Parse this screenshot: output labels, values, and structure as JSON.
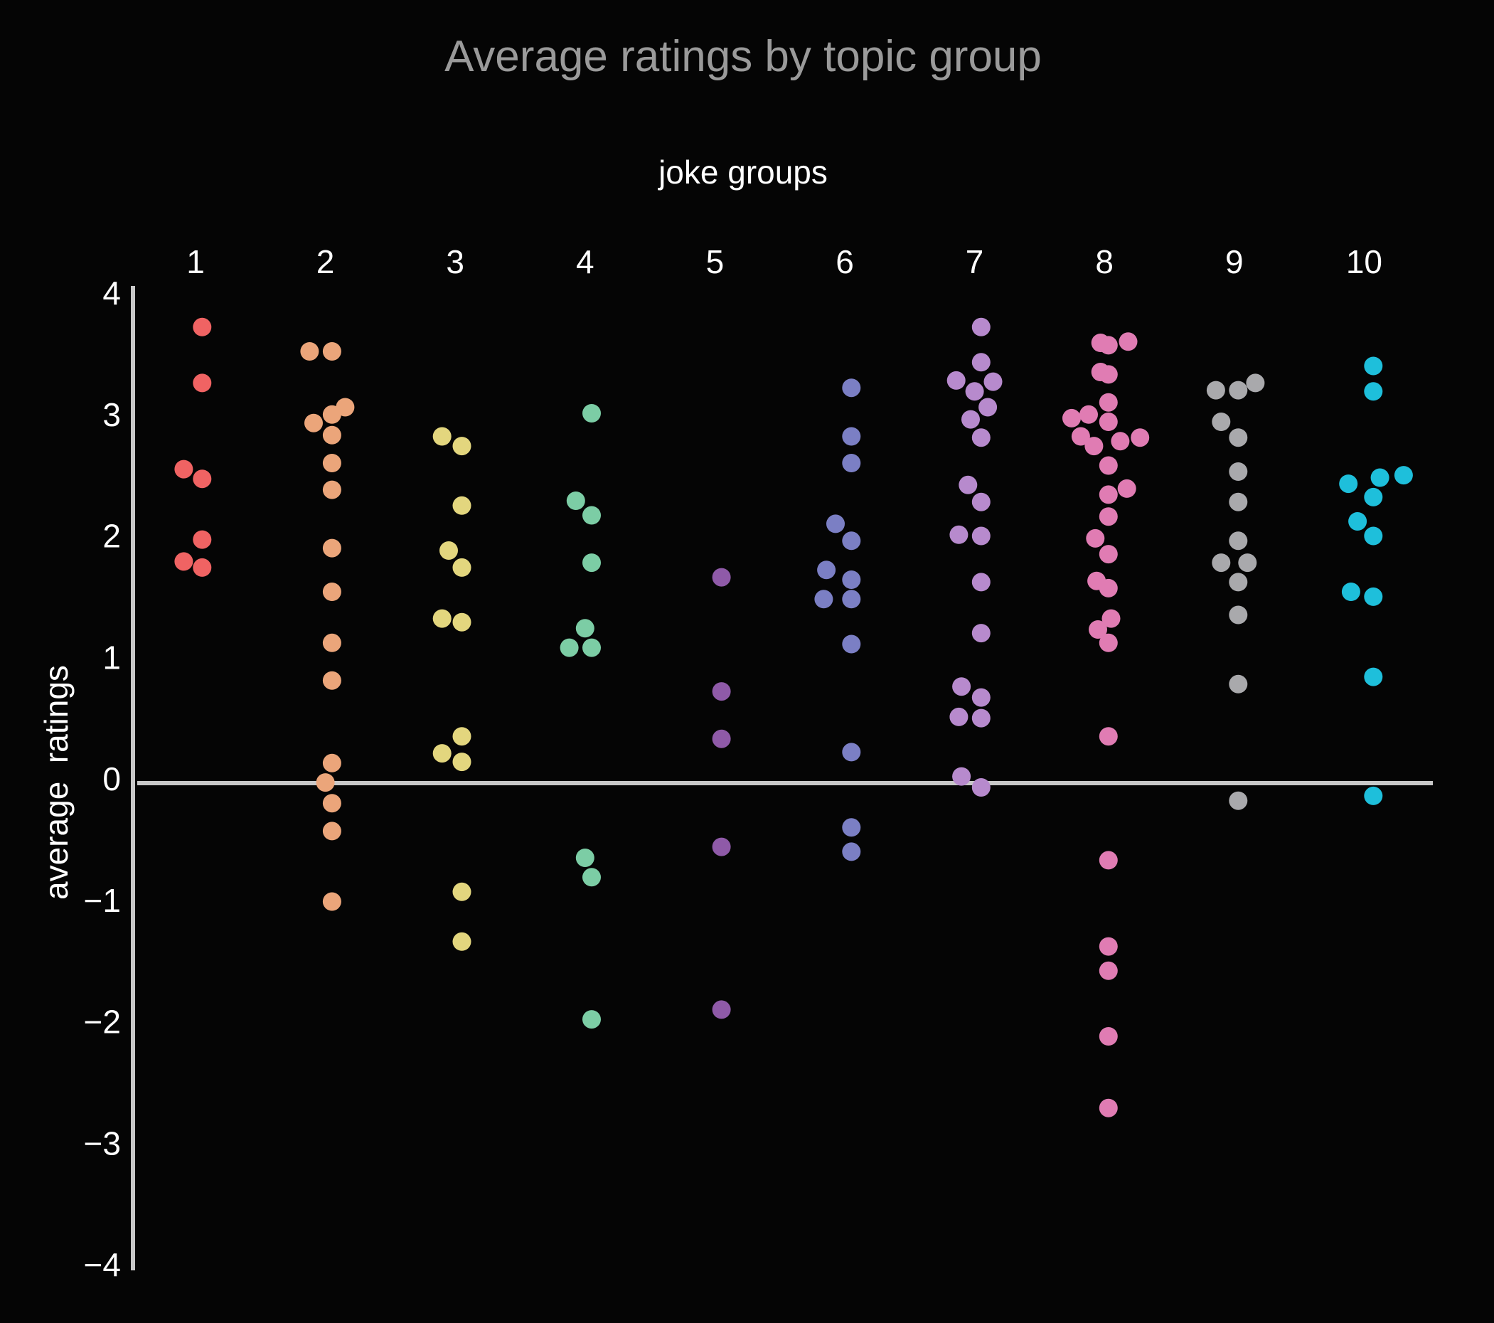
{
  "chart_data": {
    "type": "scatter",
    "title": "Average ratings by topic group",
    "xlabel": "joke groups",
    "ylabel": "average  ratings",
    "x_position": "top",
    "categories": [
      "1",
      "2",
      "3",
      "4",
      "5",
      "6",
      "7",
      "8",
      "9",
      "10"
    ],
    "y_ticks": [
      "4",
      "3",
      "2",
      "1",
      "0",
      "−1",
      "−2",
      "−3",
      "−4"
    ],
    "ylim": [
      -4,
      4
    ],
    "grid": false,
    "legend": "none",
    "axis_color": "#c8c8c8",
    "background": "#050505",
    "series": [
      {
        "category": "1",
        "color": "#f06363",
        "points": [
          [
            0.05,
            3.72
          ],
          [
            0.05,
            3.26
          ],
          [
            -0.09,
            2.55
          ],
          [
            0.05,
            2.47
          ],
          [
            0.05,
            1.97
          ],
          [
            -0.09,
            1.79
          ],
          [
            0.05,
            1.74
          ]
        ]
      },
      {
        "category": "2",
        "color": "#eba57a",
        "points": [
          [
            -0.12,
            3.52
          ],
          [
            0.05,
            3.52
          ],
          [
            0.15,
            3.06
          ],
          [
            -0.09,
            2.93
          ],
          [
            0.05,
            3.0
          ],
          [
            0.05,
            2.83
          ],
          [
            0.05,
            2.6
          ],
          [
            0.05,
            2.38
          ],
          [
            0.05,
            1.9
          ],
          [
            0.05,
            1.54
          ],
          [
            0.05,
            1.12
          ],
          [
            0.05,
            0.81
          ],
          [
            0.05,
            0.13
          ],
          [
            0.0,
            -0.03
          ],
          [
            0.05,
            -0.2
          ],
          [
            0.05,
            -0.43
          ],
          [
            0.05,
            -1.01
          ]
        ]
      },
      {
        "category": "3",
        "color": "#e3d67e",
        "points": [
          [
            -0.1,
            2.82
          ],
          [
            0.05,
            2.74
          ],
          [
            0.05,
            2.25
          ],
          [
            -0.05,
            1.88
          ],
          [
            0.05,
            1.74
          ],
          [
            -0.1,
            1.32
          ],
          [
            0.05,
            1.29
          ],
          [
            0.05,
            0.35
          ],
          [
            -0.1,
            0.21
          ],
          [
            0.05,
            0.14
          ],
          [
            0.05,
            -0.93
          ],
          [
            0.05,
            -1.34
          ]
        ]
      },
      {
        "category": "4",
        "color": "#7ccda5",
        "points": [
          [
            0.05,
            3.01
          ],
          [
            -0.07,
            2.29
          ],
          [
            0.05,
            2.17
          ],
          [
            0.05,
            1.78
          ],
          [
            0.0,
            1.24
          ],
          [
            -0.12,
            1.08
          ],
          [
            0.05,
            1.08
          ],
          [
            0.0,
            -0.65
          ],
          [
            0.05,
            -0.81
          ],
          [
            0.05,
            -1.98
          ]
        ]
      },
      {
        "category": "5",
        "color": "#8f5aa8",
        "points": [
          [
            0.05,
            1.66
          ],
          [
            0.05,
            0.72
          ],
          [
            0.05,
            0.33
          ],
          [
            0.05,
            -0.56
          ],
          [
            0.05,
            -1.9
          ]
        ]
      },
      {
        "category": "6",
        "color": "#7b7fc4",
        "points": [
          [
            0.05,
            3.22
          ],
          [
            0.05,
            2.82
          ],
          [
            0.05,
            2.6
          ],
          [
            -0.07,
            2.1
          ],
          [
            0.05,
            1.96
          ],
          [
            -0.14,
            1.72
          ],
          [
            0.05,
            1.64
          ],
          [
            -0.16,
            1.48
          ],
          [
            0.05,
            1.48
          ],
          [
            0.05,
            1.11
          ],
          [
            0.05,
            0.22
          ],
          [
            0.05,
            -0.4
          ],
          [
            0.05,
            -0.6
          ]
        ]
      },
      {
        "category": "7",
        "color": "#b78acd",
        "points": [
          [
            0.05,
            3.72
          ],
          [
            0.05,
            3.43
          ],
          [
            -0.14,
            3.28
          ],
          [
            0.0,
            3.19
          ],
          [
            0.14,
            3.27
          ],
          [
            0.1,
            3.06
          ],
          [
            -0.03,
            2.96
          ],
          [
            0.05,
            2.81
          ],
          [
            -0.05,
            2.42
          ],
          [
            0.05,
            2.28
          ],
          [
            -0.12,
            2.01
          ],
          [
            0.05,
            2.0
          ],
          [
            0.05,
            1.62
          ],
          [
            0.05,
            1.2
          ],
          [
            -0.1,
            0.76
          ],
          [
            0.05,
            0.67
          ],
          [
            -0.12,
            0.51
          ],
          [
            0.05,
            0.5
          ],
          [
            -0.1,
            0.02
          ],
          [
            0.05,
            -0.07
          ]
        ]
      },
      {
        "category": "8",
        "color": "#e07cb3",
        "points": [
          [
            -0.03,
            3.59
          ],
          [
            0.03,
            3.57
          ],
          [
            0.18,
            3.6
          ],
          [
            -0.03,
            3.35
          ],
          [
            0.03,
            3.33
          ],
          [
            0.03,
            3.1
          ],
          [
            -0.25,
            2.97
          ],
          [
            -0.12,
            3.0
          ],
          [
            0.03,
            2.94
          ],
          [
            -0.18,
            2.82
          ],
          [
            -0.08,
            2.74
          ],
          [
            0.12,
            2.78
          ],
          [
            0.27,
            2.81
          ],
          [
            0.03,
            2.58
          ],
          [
            0.03,
            2.34
          ],
          [
            0.17,
            2.39
          ],
          [
            0.03,
            2.16
          ],
          [
            -0.07,
            1.98
          ],
          [
            0.03,
            1.85
          ],
          [
            -0.06,
            1.63
          ],
          [
            0.03,
            1.57
          ],
          [
            0.05,
            1.32
          ],
          [
            -0.05,
            1.23
          ],
          [
            0.03,
            1.12
          ],
          [
            0.03,
            0.35
          ],
          [
            0.03,
            -0.67
          ],
          [
            0.03,
            -1.38
          ],
          [
            0.03,
            -1.58
          ],
          [
            0.03,
            -2.12
          ],
          [
            0.03,
            -2.71
          ]
        ]
      },
      {
        "category": "9",
        "color": "#a9a9ac",
        "points": [
          [
            -0.14,
            3.2
          ],
          [
            0.03,
            3.2
          ],
          [
            0.16,
            3.26
          ],
          [
            -0.1,
            2.94
          ],
          [
            0.03,
            2.81
          ],
          [
            0.03,
            2.53
          ],
          [
            0.03,
            2.28
          ],
          [
            0.03,
            1.96
          ],
          [
            -0.1,
            1.78
          ],
          [
            0.1,
            1.78
          ],
          [
            0.03,
            1.62
          ],
          [
            0.03,
            1.35
          ],
          [
            0.03,
            0.78
          ],
          [
            0.03,
            -0.18
          ]
        ]
      },
      {
        "category": "10",
        "color": "#1ebfdb",
        "points": [
          [
            0.07,
            3.4
          ],
          [
            0.07,
            3.19
          ],
          [
            -0.12,
            2.43
          ],
          [
            0.12,
            2.48
          ],
          [
            0.3,
            2.5
          ],
          [
            0.07,
            2.32
          ],
          [
            -0.05,
            2.12
          ],
          [
            0.07,
            2.0
          ],
          [
            -0.1,
            1.54
          ],
          [
            0.07,
            1.5
          ],
          [
            0.07,
            0.84
          ],
          [
            0.07,
            -0.14
          ]
        ]
      }
    ]
  }
}
